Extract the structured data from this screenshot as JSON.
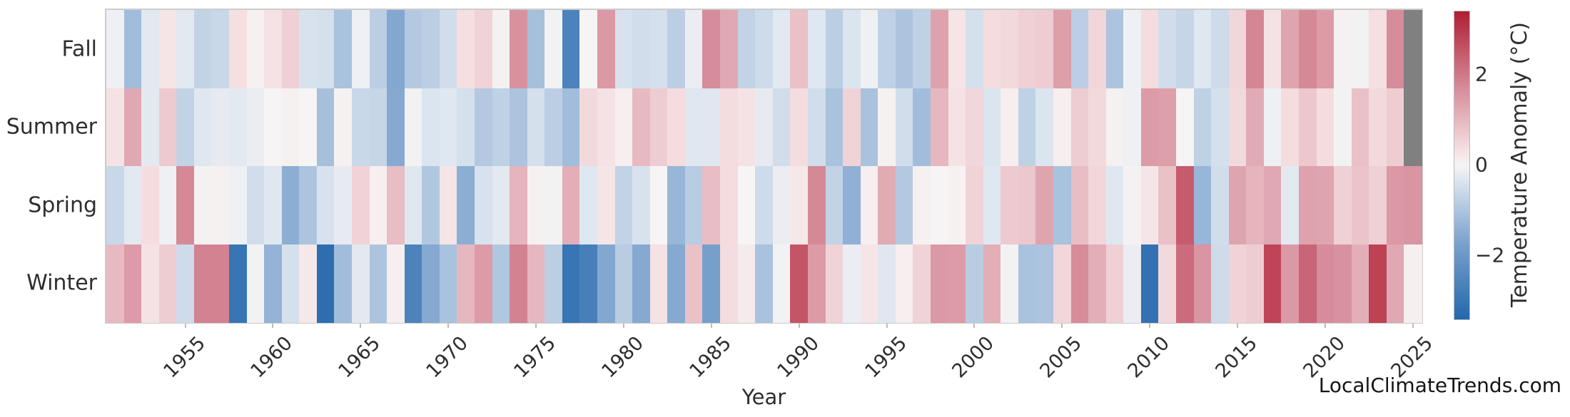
{
  "watermark": "LocalClimateTrends.com",
  "chart_data": {
    "type": "heatmap",
    "title": "",
    "xlabel": "Year",
    "ylabel": "",
    "rows": [
      "Fall",
      "Summer",
      "Spring",
      "Winter"
    ],
    "year_start": 1951,
    "year_end": 2025,
    "x_ticks": [
      1955,
      1960,
      1965,
      1970,
      1975,
      1980,
      1985,
      1990,
      1995,
      2000,
      2005,
      2010,
      2015,
      2020,
      2025
    ],
    "grid": false,
    "missing_color": "#808080",
    "colorbar": {
      "label": "Temperature Anomaly (°C)",
      "ticks": [
        2,
        0,
        -2
      ],
      "tick_labels": [
        "2",
        "0",
        "−2"
      ],
      "vmin": -3.4,
      "vmax": 3.4,
      "position": "right",
      "colormap_stops": [
        [
          0.0,
          "#2367ac"
        ],
        [
          0.25,
          "#7ba2cd"
        ],
        [
          0.45,
          "#dce5ef"
        ],
        [
          0.5,
          "#f6f4f4"
        ],
        [
          0.55,
          "#f5e0e2"
        ],
        [
          0.75,
          "#d68c9a"
        ],
        [
          1.0,
          "#b01e33"
        ]
      ]
    },
    "series": [
      {
        "name": "Fall",
        "values": [
          -0.1,
          -1.15,
          -0.25,
          0.25,
          -0.25,
          -0.7,
          -0.6,
          0.35,
          0.05,
          0.3,
          0.6,
          -0.4,
          -0.45,
          -1.05,
          -0.1,
          -0.8,
          -1.6,
          -0.9,
          -0.8,
          -0.5,
          0.35,
          0.55,
          0.05,
          1.6,
          -1.1,
          -0.05,
          -2.6,
          0,
          1.5,
          -0.4,
          -0.5,
          -0.45,
          -0.8,
          -0.15,
          1.7,
          1.25,
          -0.7,
          -0.55,
          -0.25,
          0.85,
          -0.3,
          -0.8,
          -0.35,
          -0.1,
          -0.75,
          -1.0,
          -0.75,
          1.35,
          0.25,
          -0.45,
          0.4,
          0.45,
          0.6,
          0.65,
          1.4,
          -0.8,
          0.5,
          -1.0,
          -0.1,
          0.4,
          -0.5,
          -0.65,
          -0.3,
          -0.55,
          0.5,
          1.8,
          0.3,
          1.3,
          1.75,
          1.45,
          0.05,
          -0.05,
          0.35,
          1.7,
          null
        ]
      },
      {
        "name": "Summer",
        "values": [
          0.3,
          1.25,
          -0.25,
          0.7,
          -0.7,
          -0.3,
          -0.2,
          -0.25,
          -0.15,
          0,
          0.05,
          0,
          -1.1,
          0.05,
          -0.6,
          -0.65,
          -1.55,
          -0.05,
          -0.35,
          -0.3,
          -0.45,
          -0.9,
          -0.75,
          -1.0,
          -0.45,
          -0.8,
          -1.15,
          0.45,
          0.3,
          0.1,
          0.95,
          0.65,
          0.4,
          -0.3,
          -0.3,
          0.4,
          0.3,
          -0.2,
          -0.5,
          0.4,
          -0.5,
          -1.05,
          0.55,
          -1.05,
          0.05,
          -0.5,
          -1.15,
          1.0,
          0.3,
          0.5,
          -0.35,
          0.1,
          -0.75,
          -0.35,
          0.1,
          0.65,
          0.45,
          0.05,
          -0.1,
          1.45,
          1.4,
          0,
          -0.75,
          -0.45,
          0.45,
          1.2,
          -0.1,
          0.4,
          0.75,
          0.4,
          -0.05,
          0.85,
          0.45,
          0.65,
          null
        ]
      },
      {
        "name": "Spring",
        "values": [
          -0.6,
          -0.25,
          0.4,
          -0.1,
          1.75,
          0.05,
          0.05,
          -0.1,
          -0.5,
          -0.3,
          -1.45,
          -1.0,
          -0.4,
          -0.2,
          0.55,
          0.1,
          0.9,
          -0.3,
          -0.95,
          0.25,
          -1.45,
          -0.4,
          -0.25,
          1.05,
          0.05,
          -0.05,
          1.15,
          -0.3,
          0.25,
          -0.7,
          -0.4,
          0,
          -1.3,
          -0.85,
          0.9,
          0.4,
          0,
          -0.55,
          -0.15,
          0.2,
          1.75,
          -0.7,
          -1.4,
          0.1,
          1.2,
          -0.9,
          0.05,
          0,
          0.05,
          0.55,
          -0.3,
          0.7,
          0.75,
          1.3,
          -1.05,
          0.9,
          0.5,
          -0.3,
          0.05,
          0.25,
          0.85,
          2.45,
          -1.3,
          -0.5,
          1.3,
          1.05,
          1.25,
          -0.25,
          1.35,
          1.3,
          0.6,
          0.8,
          0.6,
          1.5,
          1.55
        ]
      },
      {
        "name": "Winter",
        "values": [
          0.95,
          1.45,
          0.3,
          0.65,
          -0.55,
          1.85,
          1.85,
          -3.0,
          -0.05,
          -1.35,
          -0.45,
          0.2,
          -3.2,
          -1.15,
          -0.25,
          -1.0,
          0.1,
          -2.6,
          -1.55,
          -1.05,
          1.0,
          1.45,
          -0.95,
          1.85,
          1.0,
          -0.8,
          -3.0,
          -2.7,
          -1.6,
          -0.85,
          -1.55,
          0.3,
          -1.55,
          0.85,
          -1.8,
          0.4,
          0.15,
          -1.05,
          -0.05,
          2.55,
          1.45,
          0.55,
          -0.15,
          0.25,
          -0.3,
          0.1,
          0.55,
          1.5,
          1.45,
          -0.85,
          1.15,
          -0.05,
          -1.05,
          -1.0,
          0.5,
          1.7,
          1.15,
          0.6,
          -0.15,
          -3.1,
          0.45,
          2.2,
          1.55,
          -0.55,
          0.55,
          0.65,
          2.8,
          1.5,
          2.3,
          1.7,
          1.6,
          1.15,
          2.85,
          1.25,
          0.1
        ]
      }
    ]
  }
}
